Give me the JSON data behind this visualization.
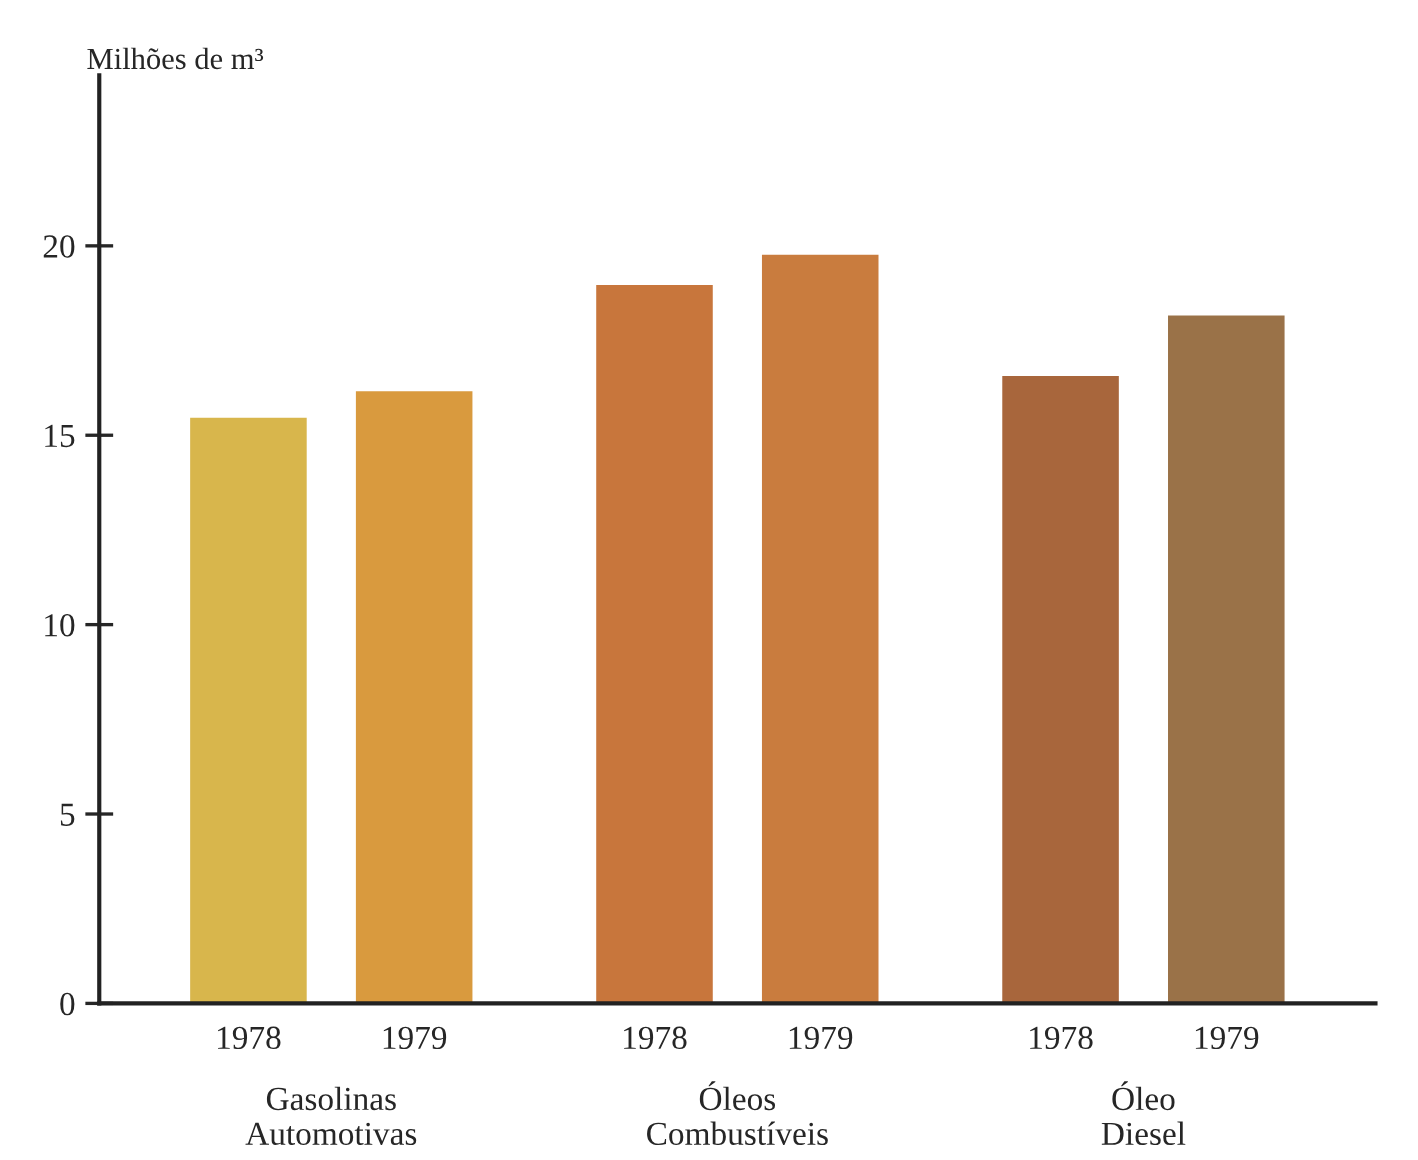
{
  "chart_data": {
    "type": "bar",
    "ylabel": "Milhões de m³",
    "categories": [
      "1978",
      "1979",
      "1978",
      "1979",
      "1978",
      "1979"
    ],
    "values": [
      15.5,
      16.2,
      19.0,
      19.8,
      16.6,
      18.2
    ],
    "colors": [
      "#d8b64c",
      "#d99a3e",
      "#c8763c",
      "#c97c3e",
      "#a8663c",
      "#9a7248"
    ],
    "ylim": [
      0,
      24.5
    ],
    "yticks": [
      0,
      5,
      10,
      15,
      20
    ],
    "grid": false,
    "annotations": [
      "Gasolinas\nAutomotivas",
      "Óleos\nCombustíveis",
      "Óleo\nDiesel"
    ]
  }
}
